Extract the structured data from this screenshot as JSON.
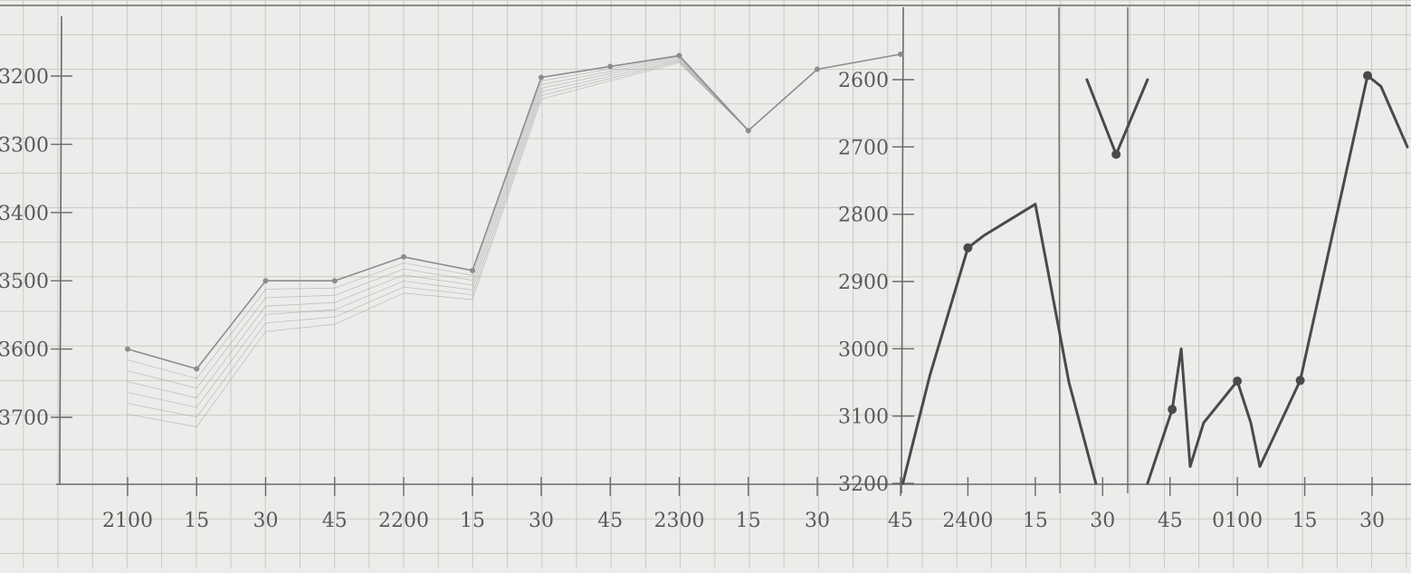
{
  "chart_data": {
    "type": "line",
    "title": "",
    "xlabel": "",
    "ylabel": "",
    "grid": true,
    "colors": {
      "paper": "#ececea",
      "grid": "#c9c9c6",
      "axis": "#6a6a6a",
      "trace_light": "#8c8c8c",
      "trace_dark": "#4a4a4a",
      "text": "#5a5a5a"
    },
    "x_ticks": [
      {
        "t": 0,
        "label": "2100"
      },
      {
        "t": 15,
        "label": "15"
      },
      {
        "t": 30,
        "label": "30"
      },
      {
        "t": 45,
        "label": "45"
      },
      {
        "t": 60,
        "label": "2200"
      },
      {
        "t": 75,
        "label": "15"
      },
      {
        "t": 90,
        "label": "30"
      },
      {
        "t": 105,
        "label": "45"
      },
      {
        "t": 120,
        "label": "2300"
      },
      {
        "t": 135,
        "label": "15"
      },
      {
        "t": 150,
        "label": "30"
      },
      {
        "t": 165,
        "label": "45"
      },
      {
        "t": 180,
        "label": "2400"
      },
      {
        "t": 195,
        "label": "15"
      },
      {
        "t": 210,
        "label": "30"
      },
      {
        "t": 225,
        "label": "45"
      },
      {
        "t": 240,
        "label": "0100"
      },
      {
        "t": 255,
        "label": "15"
      },
      {
        "t": 270,
        "label": "30"
      }
    ],
    "x_range": [
      -15,
      278
    ],
    "left_axis": {
      "ticks": [
        "3200",
        "3300",
        "3400",
        "3500",
        "3600",
        "3700"
      ],
      "range": [
        3800,
        3200
      ]
    },
    "right_axis": {
      "ticks": [
        "2600",
        "2700",
        "2800",
        "2900",
        "3000",
        "3100",
        "3200"
      ],
      "range": [
        3200,
        2600
      ]
    },
    "series": [
      {
        "axis": "left",
        "style": "light",
        "x": [
          0,
          15,
          30,
          45,
          60,
          75,
          90,
          105,
          120,
          135,
          150,
          165
        ],
        "y": [
          3600,
          3629,
          3500,
          3500,
          3465,
          3485,
          3202,
          3186,
          3170,
          3280,
          3190,
          3168
        ],
        "markers": [
          0,
          1,
          2,
          3,
          4,
          5,
          6,
          7,
          8,
          9,
          10,
          11
        ]
      },
      {
        "axis": "right",
        "style": "dark",
        "x": [
          165.5,
          171.5,
          180,
          183.5,
          195,
          202.5,
          208.5
        ],
        "y": [
          3200,
          3040,
          2850,
          2832,
          2785,
          3050,
          3200
        ],
        "markers": [
          2
        ]
      },
      {
        "axis": "right",
        "style": "dark",
        "x": [
          206.5,
          213,
          220
        ],
        "y": [
          2600,
          2711,
          2600
        ],
        "markers": [
          1
        ]
      },
      {
        "axis": "right",
        "style": "dark",
        "x": [
          220,
          225.5,
          227.5,
          229.5,
          232.5,
          240,
          243,
          245,
          254,
          269,
          272,
          278
        ],
        "y": [
          3200,
          3090,
          3000,
          3175,
          3110,
          3048,
          3110,
          3175,
          3047,
          2594,
          2610,
          2700
        ],
        "markers": [
          1,
          5,
          8,
          9
        ]
      }
    ]
  }
}
